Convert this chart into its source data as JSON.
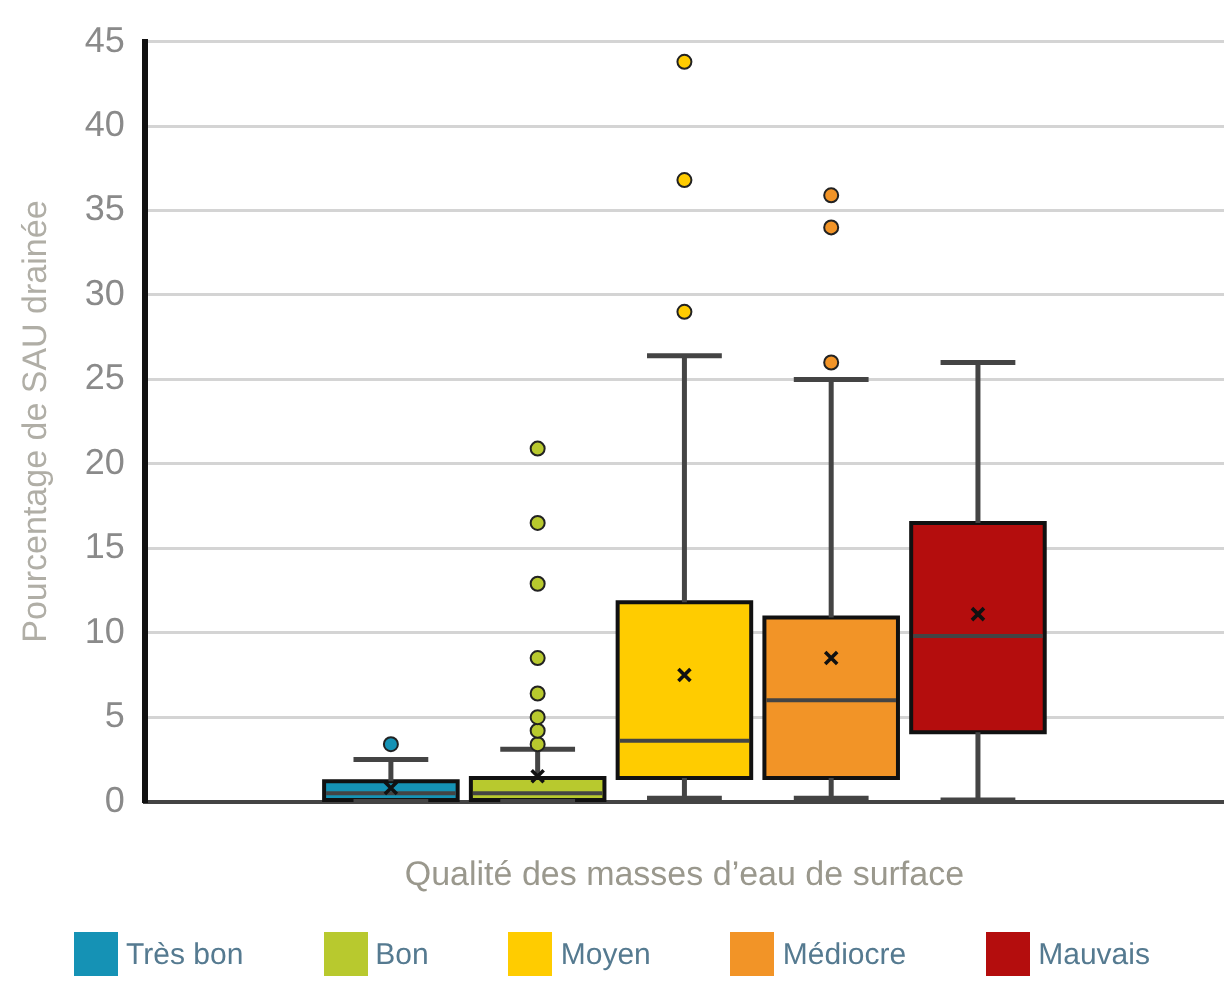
{
  "chart_data": {
    "type": "box",
    "categories": [
      null
    ],
    "xlabel": "Qualité des masses d’eau de surface",
    "ylabel": "Pourcentage de SAU drainée",
    "ylim": [
      0,
      45
    ],
    "yticks": [
      0,
      5,
      10,
      15,
      20,
      25,
      30,
      35,
      40,
      45
    ],
    "grid": "y",
    "legend": "bottom",
    "marker": "circle",
    "series": [
      {
        "name": "Très bon",
        "color": "#1592b5",
        "boxes": [
          {
            "low": 0,
            "q1": 0.1,
            "median": 0.5,
            "q3": 1.2,
            "high": 2.5,
            "mean": 0.8,
            "outliers": [
              3.4
            ]
          }
        ]
      },
      {
        "name": "Bon",
        "color": "#b8c92e",
        "boxes": [
          {
            "low": 0,
            "q1": 0.1,
            "median": 0.5,
            "q3": 1.4,
            "high": 3.1,
            "mean": 1.5,
            "outliers": [
              3.4,
              4.2,
              5.0,
              6.4,
              8.5,
              12.9,
              16.5,
              20.9
            ]
          }
        ]
      },
      {
        "name": "Moyen",
        "color": "#ffcc00",
        "boxes": [
          {
            "low": 0.2,
            "q1": 1.4,
            "median": 3.6,
            "q3": 11.8,
            "high": 26.4,
            "mean": 7.5,
            "outliers": [
              29.0,
              36.8,
              43.8
            ]
          }
        ]
      },
      {
        "name": "Médiocre",
        "color": "#f29427",
        "boxes": [
          {
            "low": 0.2,
            "q1": 1.4,
            "median": 6.0,
            "q3": 10.9,
            "high": 25.0,
            "mean": 8.5,
            "outliers": [
              26.0,
              34.0,
              35.9
            ]
          }
        ]
      },
      {
        "name": "Mauvais",
        "color": "#b40d0d",
        "boxes": [
          {
            "low": 0.1,
            "q1": 4.1,
            "median": 9.8,
            "q3": 16.5,
            "high": 26.0,
            "mean": 11.1
          }
        ]
      }
    ]
  }
}
